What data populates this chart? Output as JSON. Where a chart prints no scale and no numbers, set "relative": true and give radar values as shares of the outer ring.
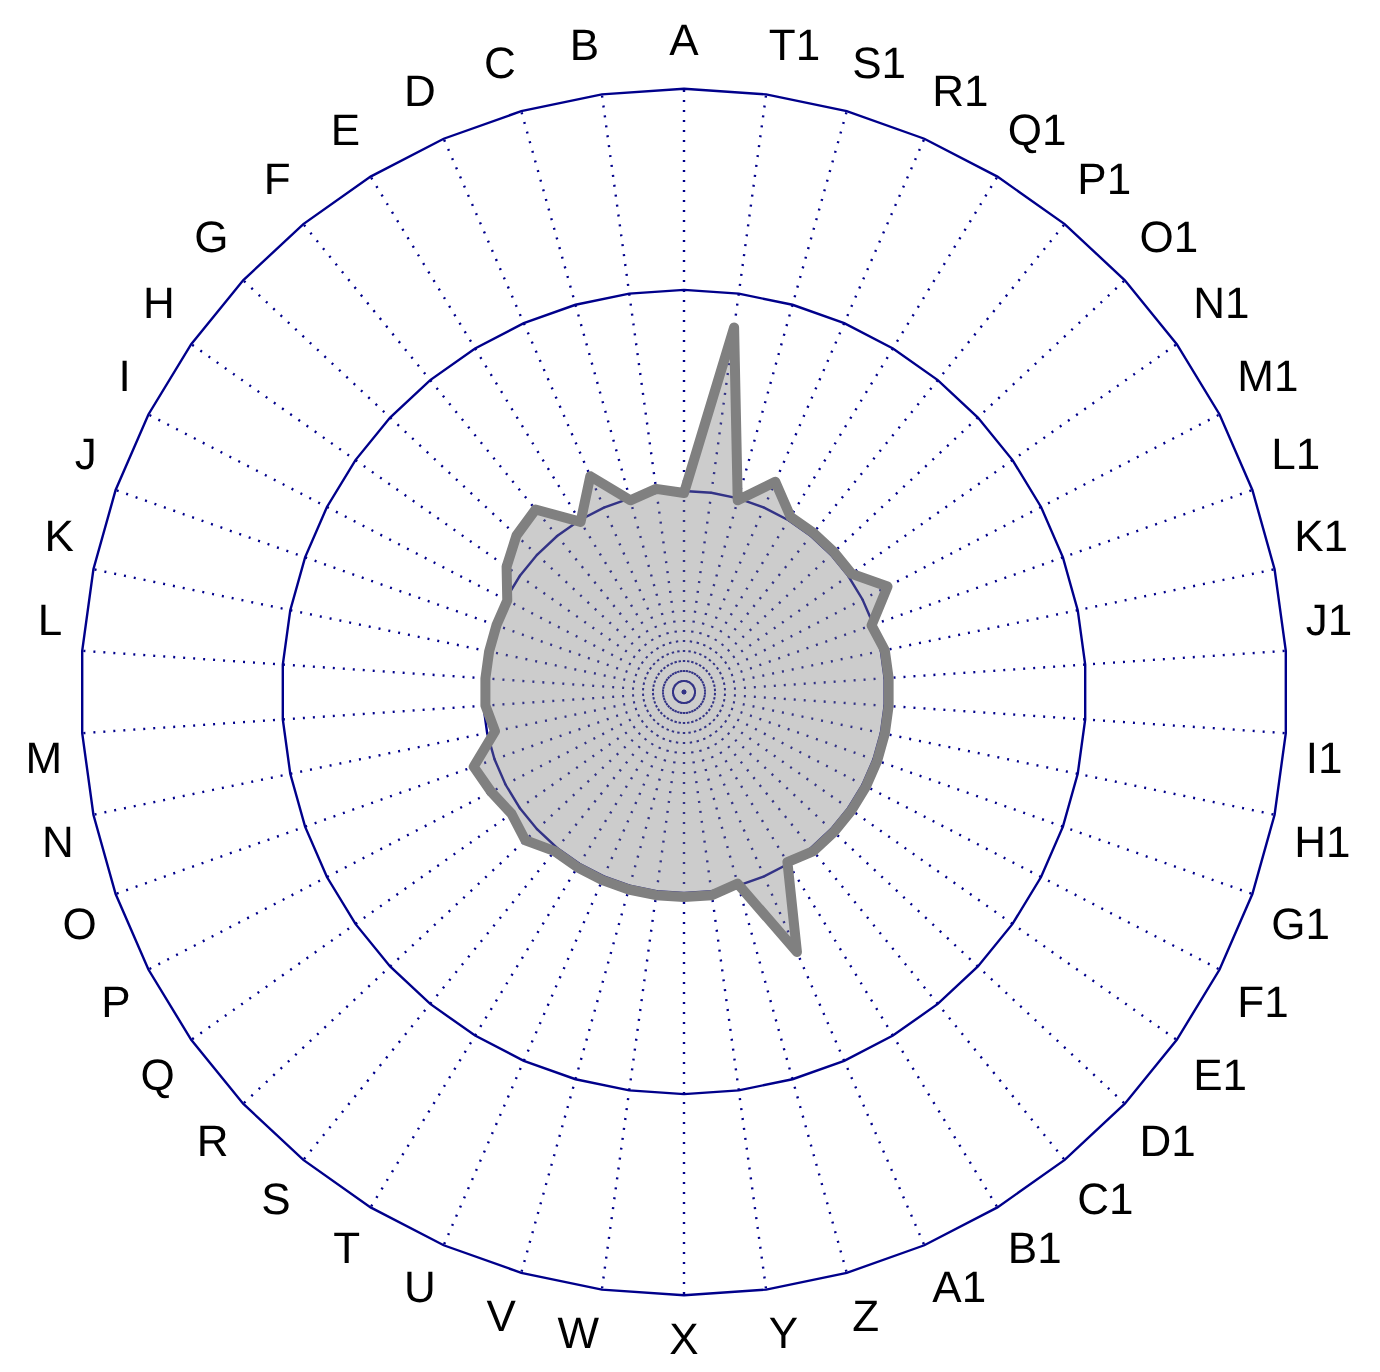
{
  "chart_data": {
    "type": "radar",
    "relative": true,
    "grid": true,
    "marker": "none",
    "legend": false,
    "categories": [
      "A",
      "T1",
      "S1",
      "R1",
      "Q1",
      "P1",
      "O1",
      "N1",
      "M1",
      "L1",
      "K1",
      "J1",
      "I1",
      "H1",
      "G1",
      "F1",
      "E1",
      "D1",
      "C1",
      "B1",
      "A1",
      "Z",
      "Y",
      "X",
      "W",
      "V",
      "U",
      "T",
      "S",
      "R",
      "Q",
      "P",
      "O",
      "N",
      "M",
      "L",
      "K",
      "J",
      "I",
      "H",
      "G",
      "F",
      "E",
      "D",
      "C",
      "B"
    ],
    "series": [
      {
        "color": "#808080",
        "values": [
          0.33,
          0.61,
          0.33,
          0.38,
          0.34,
          0.34,
          0.34,
          0.34,
          0.38,
          0.33,
          0.34,
          0.34,
          0.34,
          0.34,
          0.34,
          0.34,
          0.34,
          0.34,
          0.34,
          0.33,
          0.47,
          0.33,
          0.34,
          0.34,
          0.34,
          0.34,
          0.34,
          0.34,
          0.34,
          0.36,
          0.35,
          0.36,
          0.37,
          0.32,
          0.33,
          0.33,
          0.33,
          0.33,
          0.33,
          0.36,
          0.38,
          0.39,
          0.33,
          0.39,
          0.33,
          0.34
        ]
      }
    ]
  }
}
